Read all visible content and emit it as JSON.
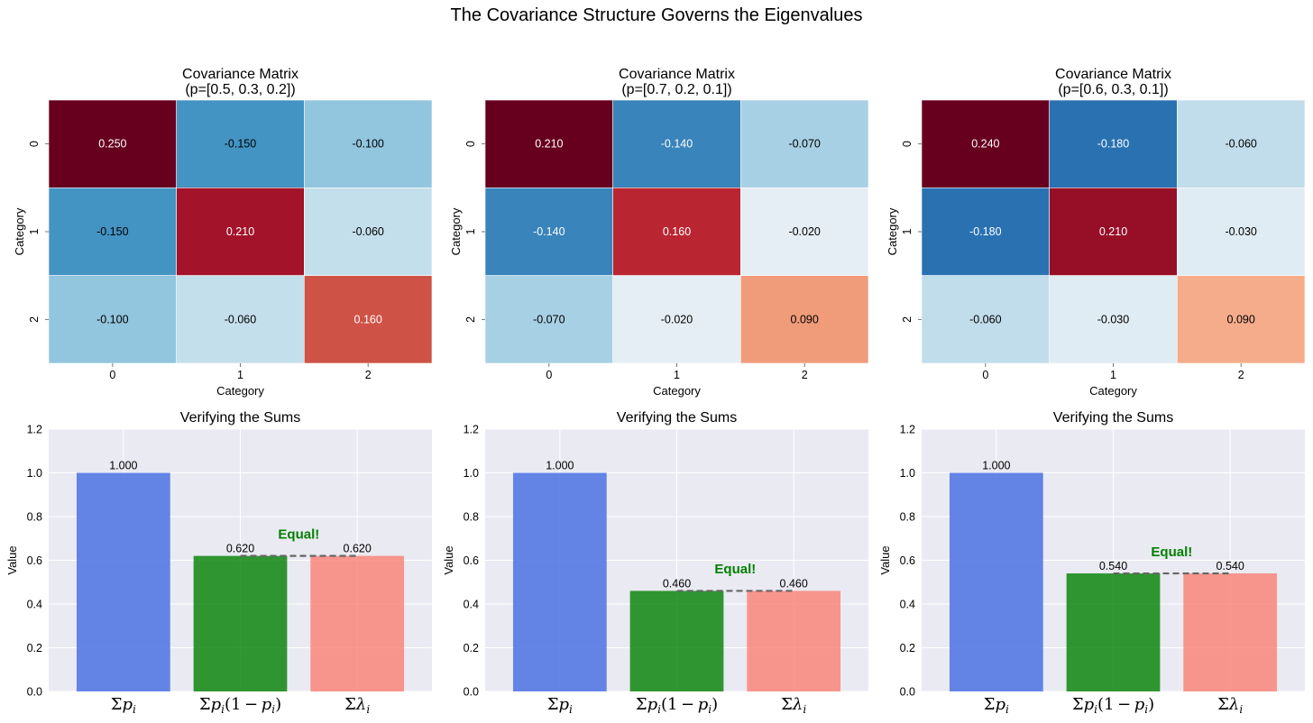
{
  "suptitle": "The Covariance Structure Governs the Eigenvalues",
  "chart_data": [
    {
      "type": "heatmap",
      "title": "Covariance Matrix",
      "subtitle": "(p=[0.5, 0.3, 0.2])",
      "xlabel": "Category",
      "ylabel": "Category",
      "x_ticks": [
        "0",
        "1",
        "2"
      ],
      "y_ticks": [
        "0",
        "1",
        "2"
      ],
      "matrix": [
        [
          0.25,
          -0.15,
          -0.1
        ],
        [
          -0.15,
          0.21,
          -0.06
        ],
        [
          -0.1,
          -0.06,
          0.16
        ]
      ],
      "labels": [
        [
          "0.250",
          "-0.150",
          "-0.100"
        ],
        [
          "-0.150",
          "0.210",
          "-0.060"
        ],
        [
          "-0.100",
          "-0.060",
          "0.160"
        ]
      ],
      "vmin": -0.25,
      "vmax": 0.25,
      "colormap": "RdBu_r"
    },
    {
      "type": "heatmap",
      "title": "Covariance Matrix",
      "subtitle": "(p=[0.7, 0.2, 0.1])",
      "xlabel": "Category",
      "ylabel": "Category",
      "x_ticks": [
        "0",
        "1",
        "2"
      ],
      "y_ticks": [
        "0",
        "1",
        "2"
      ],
      "matrix": [
        [
          0.21,
          -0.14,
          -0.07
        ],
        [
          -0.14,
          0.16,
          -0.02
        ],
        [
          -0.07,
          -0.02,
          0.09
        ]
      ],
      "labels": [
        [
          "0.210",
          "-0.140",
          "-0.070"
        ],
        [
          "-0.140",
          "0.160",
          "-0.020"
        ],
        [
          "-0.070",
          "-0.020",
          "0.090"
        ]
      ],
      "vmin": -0.21,
      "vmax": 0.21,
      "colormap": "RdBu_r"
    },
    {
      "type": "heatmap",
      "title": "Covariance Matrix",
      "subtitle": "(p=[0.6, 0.3, 0.1])",
      "xlabel": "Category",
      "ylabel": "Category",
      "x_ticks": [
        "0",
        "1",
        "2"
      ],
      "y_ticks": [
        "0",
        "1",
        "2"
      ],
      "matrix": [
        [
          0.24,
          -0.18,
          -0.06
        ],
        [
          -0.18,
          0.21,
          -0.03
        ],
        [
          -0.06,
          -0.03,
          0.09
        ]
      ],
      "labels": [
        [
          "0.240",
          "-0.180",
          "-0.060"
        ],
        [
          "-0.180",
          "0.210",
          "-0.030"
        ],
        [
          "-0.060",
          "-0.030",
          "0.090"
        ]
      ],
      "vmin": -0.24,
      "vmax": 0.24,
      "colormap": "RdBu_r"
    },
    {
      "type": "bar",
      "title": "Verifying the Sums",
      "ylabel": "Value",
      "categories": [
        "sum_p",
        "sum_p_1mp",
        "sum_lambda"
      ],
      "values": [
        1.0,
        0.62,
        0.62
      ],
      "value_labels": [
        "1.000",
        "0.620",
        "0.620"
      ],
      "colors": [
        "#4169e1",
        "#008000",
        "#fa8072"
      ],
      "annotation": "Equal!",
      "annotation_y": 0.72,
      "ylim": [
        0,
        1.2
      ],
      "yticks": [
        "0.0",
        "0.2",
        "0.4",
        "0.6",
        "0.8",
        "1.0",
        "1.2"
      ]
    },
    {
      "type": "bar",
      "title": "Verifying the Sums",
      "ylabel": "Value",
      "categories": [
        "sum_p",
        "sum_p_1mp",
        "sum_lambda"
      ],
      "values": [
        1.0,
        0.46,
        0.46
      ],
      "value_labels": [
        "1.000",
        "0.460",
        "0.460"
      ],
      "colors": [
        "#4169e1",
        "#008000",
        "#fa8072"
      ],
      "annotation": "Equal!",
      "annotation_y": 0.56,
      "ylim": [
        0,
        1.2
      ],
      "yticks": [
        "0.0",
        "0.2",
        "0.4",
        "0.6",
        "0.8",
        "1.0",
        "1.2"
      ]
    },
    {
      "type": "bar",
      "title": "Verifying the Sums",
      "ylabel": "Value",
      "categories": [
        "sum_p",
        "sum_p_1mp",
        "sum_lambda"
      ],
      "values": [
        1.0,
        0.54,
        0.54
      ],
      "value_labels": [
        "1.000",
        "0.540",
        "0.540"
      ],
      "colors": [
        "#4169e1",
        "#008000",
        "#fa8072"
      ],
      "annotation": "Equal!",
      "annotation_y": 0.64,
      "ylim": [
        0,
        1.2
      ],
      "yticks": [
        "0.0",
        "0.2",
        "0.4",
        "0.6",
        "0.8",
        "1.0",
        "1.2"
      ]
    }
  ]
}
